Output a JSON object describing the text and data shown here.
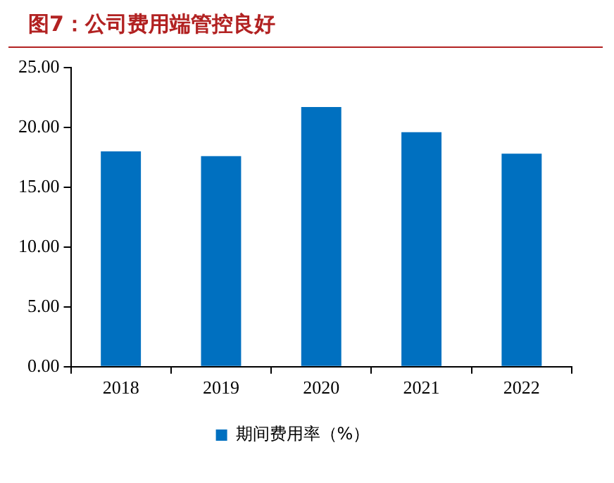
{
  "chart_data": {
    "type": "bar",
    "title": "图7：公司费用端管控良好",
    "categories": [
      "2018",
      "2019",
      "2020",
      "2021",
      "2022"
    ],
    "series": [
      {
        "name": "期间费用率（%）",
        "color": "#0070c0",
        "values": [
          18.0,
          17.6,
          21.7,
          19.6,
          17.8
        ]
      }
    ],
    "ylim": [
      0,
      25
    ],
    "yticks": [
      {
        "value": 0,
        "label": "0.00"
      },
      {
        "value": 5,
        "label": "5.00"
      },
      {
        "value": 10,
        "label": "10.00"
      },
      {
        "value": 15,
        "label": "15.00"
      },
      {
        "value": 20,
        "label": "20.00"
      },
      {
        "value": 25,
        "label": "25.00"
      }
    ],
    "grid": false,
    "legend": "bottom"
  }
}
